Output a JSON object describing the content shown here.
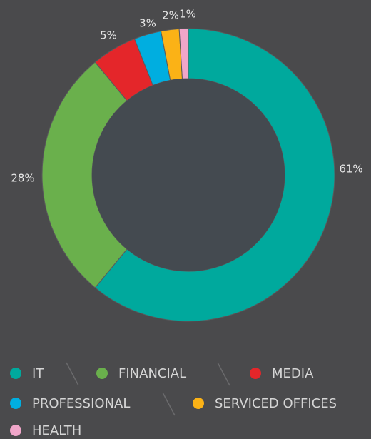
{
  "chart_data": {
    "type": "donut",
    "categories": [
      "IT",
      "FINANCIAL",
      "MEDIA",
      "PROFESSIONAL",
      "SERVICED OFFICES",
      "HEALTH"
    ],
    "values": [
      61,
      28,
      5,
      3,
      2,
      1
    ],
    "value_labels": [
      "61%",
      "28%",
      "5%",
      "3%",
      "2%",
      "1%"
    ],
    "colors": [
      "#00a99d",
      "#6ab04c",
      "#e4262a",
      "#00aee0",
      "#fbb216",
      "#f0a6c9"
    ]
  }
}
